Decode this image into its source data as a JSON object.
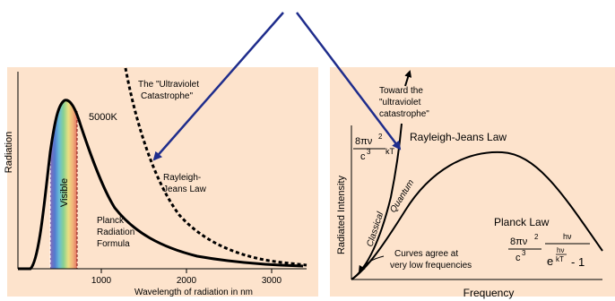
{
  "colors": {
    "panel_bg": "#fde3cc",
    "arrow": "#1f2d8c",
    "curve": "#000000",
    "visible_band": [
      "#7a5fb5",
      "#3e6fd0",
      "#58b8d8",
      "#7ccf8a",
      "#e6e07a",
      "#f0b070",
      "#e06a5a"
    ]
  },
  "left_panel": {
    "y_axis_label": "Radiation",
    "x_axis_label": "Wavelength of radiation in nm",
    "x_ticks": [
      "1000",
      "2000",
      "3000"
    ],
    "visible_label": "Visible",
    "temp_label": "5000K",
    "uv_label_line1": "The \"Ultraviolet",
    "uv_label_line2": "Catastrophe\"",
    "rj_label_line1": "Rayleigh-",
    "rj_label_line2": "Jeans Law",
    "planck_label_line1": "Planck",
    "planck_label_line2": "Radiation",
    "planck_label_line3": "Formula"
  },
  "right_panel": {
    "y_axis_label": "Radiated Intensity",
    "x_axis_label": "Frequency",
    "toward_line1": "Toward the",
    "toward_line2": "\"ultraviolet",
    "toward_line3": "catastrophe\"",
    "rj_title": "Rayleigh-Jeans Law",
    "classical_label": "Classical",
    "quantum_label": "Quantum",
    "planck_title": "Planck Law",
    "agree_line1": "Curves agree at",
    "agree_line2": "very low frequencies",
    "rj_formula": {
      "num": "8πν",
      "exp": "2",
      "den": "c",
      "den_exp": "3",
      "kt": "kT"
    },
    "planck_formula": {
      "num": "8πν",
      "exp": "2",
      "den": "c",
      "den_exp": "3",
      "hv_num": "hν",
      "frac_num": "hν",
      "frac_den": "kT",
      "e": "e",
      "minus_one": "- 1"
    }
  }
}
